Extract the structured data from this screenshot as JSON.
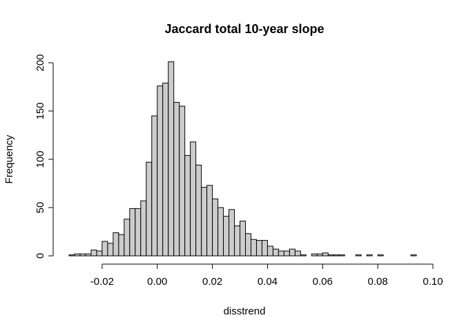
{
  "chart_data": {
    "type": "bar",
    "subtype": "histogram",
    "title": "Jaccard total 10-year slope",
    "xlabel": "disstrend",
    "ylabel": "Frequency",
    "bin_start": -0.032,
    "bin_width": 0.002,
    "values": [
      1,
      2,
      2,
      2,
      6,
      5,
      15,
      13,
      24,
      22,
      38,
      49,
      49,
      57,
      97,
      145,
      176,
      179,
      201,
      159,
      155,
      104,
      118,
      94,
      71,
      73,
      59,
      50,
      41,
      48,
      31,
      36,
      23,
      17,
      16,
      16,
      10,
      7,
      5,
      5,
      7,
      5,
      1,
      0,
      2,
      2,
      3,
      1,
      1,
      1,
      0,
      0,
      1,
      0,
      1,
      0,
      1,
      0,
      0,
      0,
      0,
      0,
      1
    ],
    "xlim": [
      -0.032,
      0.096
    ],
    "ylim": [
      0,
      200
    ],
    "x_ticks": [
      -0.02,
      0.0,
      0.02,
      0.04,
      0.06,
      0.08,
      0.1
    ],
    "x_tick_labels": [
      "-0.02",
      "0.00",
      "0.02",
      "0.04",
      "0.06",
      "0.08",
      "0.10"
    ],
    "y_ticks": [
      0,
      50,
      100,
      150,
      200
    ],
    "y_tick_labels": [
      "0",
      "50",
      "100",
      "150",
      "200"
    ],
    "grid": false,
    "bar_fill": "#cccccc",
    "bar_stroke": "#000000"
  }
}
